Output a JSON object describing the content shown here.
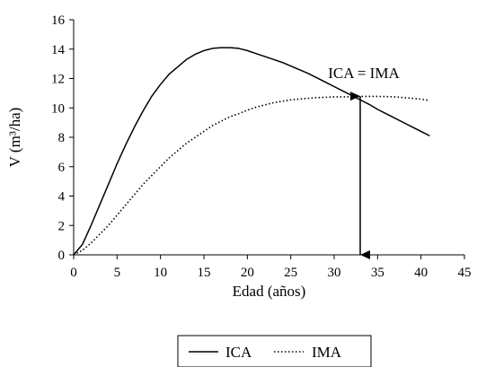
{
  "chart_data": {
    "type": "line",
    "title": "",
    "xlabel": "Edad (años)",
    "ylabel": "V (m³/ha)",
    "xlim": [
      0,
      45
    ],
    "ylim": [
      0,
      16
    ],
    "xticks": [
      0,
      5,
      10,
      15,
      20,
      25,
      30,
      35,
      40,
      45
    ],
    "yticks": [
      0,
      2,
      4,
      6,
      8,
      10,
      12,
      14,
      16
    ],
    "grid": false,
    "legend_position": "bottom-center",
    "series": [
      {
        "name": "ICA",
        "style": "solid",
        "x": [
          0,
          1,
          2,
          3,
          4,
          5,
          6,
          7,
          8,
          9,
          10,
          11,
          12,
          13,
          14,
          15,
          16,
          17,
          18,
          19,
          20,
          21,
          22,
          23,
          24,
          25,
          26,
          27,
          28,
          29,
          30,
          31,
          32,
          33,
          34,
          35,
          36,
          37,
          38,
          39,
          40,
          41
        ],
        "values": [
          0,
          0.7,
          2.0,
          3.4,
          4.8,
          6.2,
          7.5,
          8.7,
          9.8,
          10.8,
          11.6,
          12.3,
          12.8,
          13.3,
          13.65,
          13.9,
          14.05,
          14.1,
          14.1,
          14.05,
          13.9,
          13.7,
          13.5,
          13.3,
          13.1,
          12.85,
          12.6,
          12.35,
          12.05,
          11.75,
          11.45,
          11.15,
          10.85,
          10.55,
          10.25,
          9.9,
          9.6,
          9.3,
          9.0,
          8.7,
          8.4,
          8.1
        ]
      },
      {
        "name": "IMA",
        "style": "dotted",
        "x": [
          0,
          1,
          2,
          3,
          4,
          5,
          6,
          7,
          8,
          9,
          10,
          11,
          12,
          13,
          14,
          15,
          16,
          17,
          18,
          19,
          20,
          21,
          22,
          23,
          24,
          25,
          26,
          27,
          28,
          29,
          30,
          31,
          32,
          33,
          34,
          35,
          36,
          37,
          38,
          39,
          40,
          41
        ],
        "values": [
          0,
          0.3,
          0.8,
          1.4,
          2.0,
          2.7,
          3.4,
          4.1,
          4.8,
          5.4,
          6.0,
          6.6,
          7.1,
          7.6,
          8.0,
          8.4,
          8.8,
          9.1,
          9.4,
          9.6,
          9.85,
          10.05,
          10.2,
          10.35,
          10.45,
          10.55,
          10.6,
          10.65,
          10.7,
          10.72,
          10.75,
          10.75,
          10.75,
          10.78,
          10.78,
          10.78,
          10.77,
          10.75,
          10.7,
          10.65,
          10.6,
          10.5
        ]
      }
    ],
    "annotations": [
      {
        "text": "ICA = IMA",
        "x": 33,
        "y": 10.8,
        "arrow": "double-vertical",
        "arrow_from_y": 10.8,
        "arrow_to_y": 0
      }
    ],
    "colors": {
      "line": "#000000",
      "axis": "#000000",
      "background": "#ffffff"
    }
  }
}
